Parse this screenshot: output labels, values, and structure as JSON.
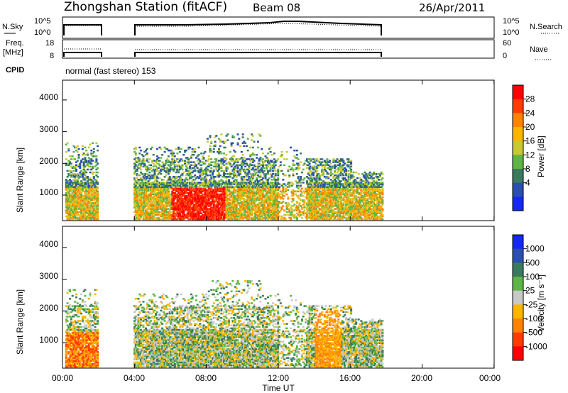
{
  "header": {
    "station": "Zhongshan Station (fitACF)",
    "beam": "Beam 08",
    "date": "26/Apr/2011"
  },
  "noise_panel": {
    "left_label": "N.Sky",
    "right_label": "N.Search",
    "ticks": [
      "10^5",
      "10^0"
    ],
    "right_ticks": [
      "10^5",
      "10^0"
    ]
  },
  "freq_panel": {
    "left_label_1": "Freq.",
    "left_label_2": "[MHz]",
    "ticks": [
      "18",
      "8"
    ],
    "right_label": "Nave",
    "right_ticks": [
      "60",
      "0"
    ]
  },
  "cpid": {
    "label": "CPID",
    "mode": "normal (fast stereo) 153"
  },
  "chart_data": [
    {
      "type": "heatmap",
      "title": "",
      "ylabel": "Slant Range [km]",
      "xlabel": "Time UT",
      "xlim": [
        "00:00",
        "24:00"
      ],
      "ylim": [
        180,
        4500
      ],
      "yticks": [
        "1000",
        "2000",
        "3000",
        "4000"
      ],
      "colorbar": {
        "label": "Power [dB]",
        "ticks": [
          "4",
          "8",
          "12",
          "16",
          "20",
          "24",
          "28"
        ],
        "colors": [
          "#1428f0",
          "#2a4fb0",
          "#3a7a5e",
          "#5fb545",
          "#c8c832",
          "#ffb400",
          "#ff8200",
          "#ff3c00",
          "#ff0000"
        ]
      },
      "data_time_ranges": [
        [
          "00:00",
          "02:00"
        ],
        [
          "04:00",
          "17:50"
        ]
      ]
    },
    {
      "type": "heatmap",
      "title": "",
      "ylabel": "Slant Range [km]",
      "xlabel": "Time UT",
      "xlim": [
        "00:00",
        "24:00"
      ],
      "ylim": [
        180,
        4500
      ],
      "yticks": [
        "1000",
        "2000",
        "3000",
        "4000"
      ],
      "colorbar": {
        "label": "Velocity [m s⁻¹]",
        "ticks": [
          "1000",
          "500",
          "100",
          "25",
          "-25",
          "-100",
          "-500",
          "-1000"
        ],
        "colors": [
          "#1428f0",
          "#2a4fb0",
          "#3a7a5e",
          "#5fb545",
          "#c8c8c8",
          "#ffb400",
          "#ff8200",
          "#ff3c00",
          "#ff0000"
        ]
      },
      "data_time_ranges": [
        [
          "00:00",
          "02:00"
        ],
        [
          "04:00",
          "17:50"
        ]
      ]
    }
  ],
  "x_axis": {
    "ticks": [
      "00:00",
      "04:00",
      "08:00",
      "12:00",
      "16:00",
      "20:00",
      "00:00"
    ],
    "label": "Time UT"
  }
}
